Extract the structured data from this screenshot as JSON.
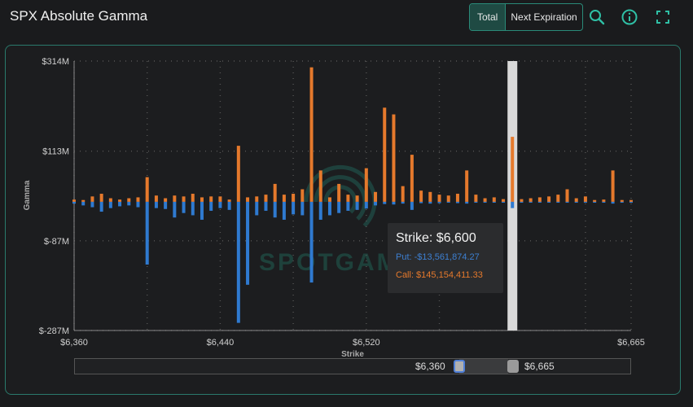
{
  "header": {
    "title": "SPX Absolute Gamma",
    "toggle_total": "Total",
    "toggle_next": "Next Expiration"
  },
  "icons": [
    "zoom-icon",
    "info-icon",
    "fullscreen-icon"
  ],
  "colors": {
    "call": "#e5792c",
    "put": "#2f7ad0",
    "accent": "#2a8a78",
    "highlight": "#d9d9d9"
  },
  "tooltip": {
    "strike": "Strike: $6,600",
    "put": "Put: -$13,561,874.27",
    "call": "Call: $145,154,411.33"
  },
  "slider": {
    "left_label": "$6,360",
    "right_label": "$6,665"
  },
  "watermark": "SPOTGAMMA",
  "chart_data": {
    "type": "bar",
    "xlabel": "Strike",
    "ylabel": "Gamma",
    "xlim": [
      6360,
      6665
    ],
    "ylim": [
      -287,
      314
    ],
    "y_ticks": [
      "$314M",
      "$113M",
      "$-87M",
      "$-287M"
    ],
    "x_ticks": [
      "$6,360",
      "$6,440",
      "$6,520",
      "$6,665"
    ],
    "highlight_strike": 6600,
    "strikes": [
      6360,
      6365,
      6370,
      6375,
      6380,
      6385,
      6390,
      6395,
      6400,
      6405,
      6410,
      6415,
      6420,
      6425,
      6430,
      6435,
      6440,
      6445,
      6450,
      6455,
      6460,
      6465,
      6470,
      6475,
      6480,
      6485,
      6490,
      6495,
      6500,
      6505,
      6510,
      6515,
      6520,
      6525,
      6530,
      6535,
      6540,
      6545,
      6550,
      6555,
      6560,
      6565,
      6570,
      6575,
      6580,
      6585,
      6590,
      6595,
      6600,
      6605,
      6610,
      6615,
      6620,
      6625,
      6630,
      6635,
      6640,
      6645,
      6650,
      6655,
      6660,
      6665
    ],
    "series": [
      {
        "name": "Call",
        "values": [
          5,
          4,
          12,
          18,
          8,
          5,
          8,
          10,
          55,
          14,
          8,
          14,
          12,
          18,
          10,
          12,
          12,
          5,
          125,
          10,
          12,
          16,
          40,
          16,
          18,
          28,
          300,
          70,
          10,
          40,
          16,
          14,
          75,
          22,
          210,
          195,
          35,
          105,
          25,
          22,
          16,
          14,
          18,
          70,
          16,
          8,
          10,
          6,
          145,
          6,
          8,
          10,
          12,
          16,
          28,
          8,
          12,
          4,
          5,
          70,
          4,
          4
        ]
      },
      {
        "name": "Put",
        "values": [
          -4,
          -8,
          -12,
          -22,
          -14,
          -10,
          -8,
          -12,
          -140,
          -14,
          -16,
          -35,
          -25,
          -30,
          -40,
          -20,
          -14,
          -18,
          -270,
          -185,
          -30,
          -20,
          -35,
          -40,
          -28,
          -30,
          -180,
          -40,
          -30,
          -25,
          -20,
          -18,
          -15,
          -8,
          -5,
          -6,
          -4,
          -18,
          -3,
          -4,
          -3,
          -2,
          -3,
          -4,
          -2,
          -2,
          -2,
          -2,
          -14,
          -2,
          -2,
          -2,
          -2,
          -2,
          -2,
          -2,
          -2,
          -2,
          -2,
          -4,
          -2,
          -2
        ]
      }
    ]
  }
}
